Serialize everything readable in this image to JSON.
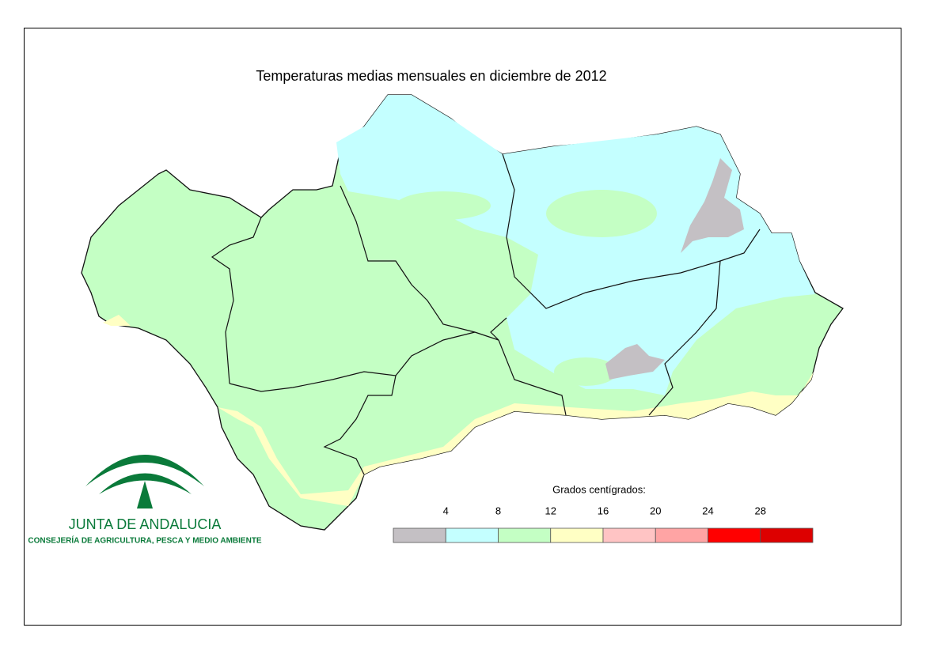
{
  "title": "Temperaturas medias mensuales en diciembre de 2012",
  "legend": {
    "title": "Grados centígrados:",
    "ticks": [
      4,
      8,
      12,
      16,
      20,
      24,
      28
    ],
    "colors": [
      "#c4c0c4",
      "#c4ffff",
      "#c4ffc4",
      "#ffffc4",
      "#ffc4c4",
      "#ffa4a4",
      "#ff0000",
      "#dd0000"
    ]
  },
  "logo": {
    "name": "JUNTA DE ANDALUCIA",
    "department": "CONSEJERÍA DE AGRICULTURA, PESCA Y MEDIO AMBIENTE"
  }
}
